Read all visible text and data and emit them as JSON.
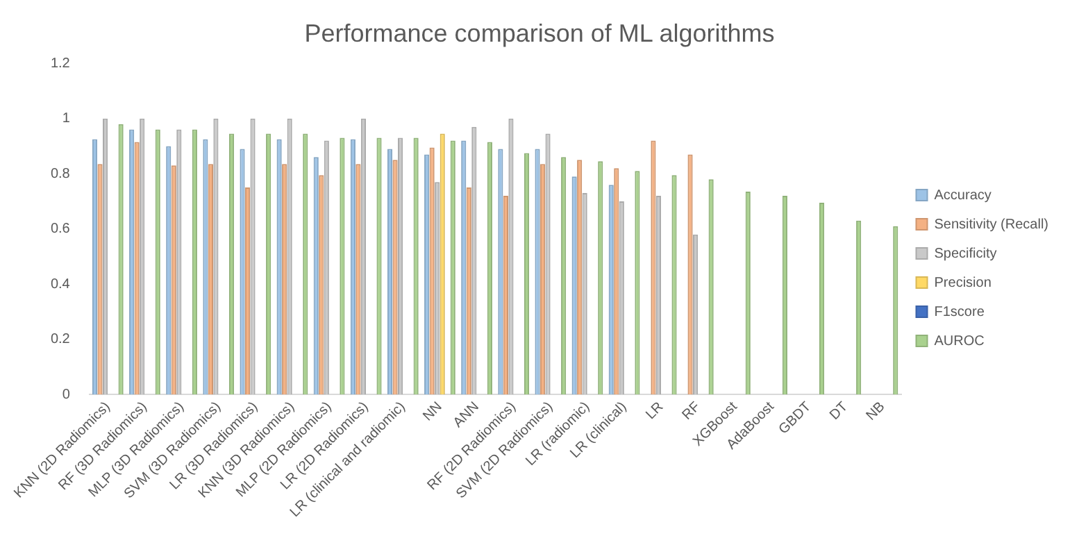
{
  "chart_data": {
    "type": "bar",
    "title": "Performance comparison of ML algorithms",
    "categories": [
      "KNN (2D Radiomics)",
      "RF (3D Radiomics)",
      "MLP (3D Radiomics)",
      "SVM (3D Radiomics)",
      "LR (3D Radiomics)",
      "KNN (3D Radiomics)",
      "MLP (2D Radiomics)",
      "LR (2D Radiomics)",
      "LR (clinical and radiomic)",
      "NN",
      "ANN",
      "RF (2D Radiomics)",
      "SVM (2D Radiomics)",
      "LR (radiomic)",
      "LR (clinical)",
      "LR",
      "RF",
      "XGBoost",
      "AdaBoost",
      "GBDT",
      "DT",
      "NB"
    ],
    "series": [
      {
        "name": "Accuracy",
        "color": "#9dc3e6",
        "values": [
          0.925,
          0.96,
          0.9,
          0.925,
          0.89,
          0.925,
          0.86,
          0.925,
          0.89,
          0.87,
          0.92,
          0.89,
          0.89,
          0.79,
          0.76,
          null,
          null,
          null,
          null,
          null,
          null,
          null
        ]
      },
      {
        "name": "Sensitivity (Recall)",
        "color": "#f4b183",
        "values": [
          0.835,
          0.915,
          0.83,
          0.835,
          0.75,
          0.835,
          0.795,
          0.835,
          0.85,
          0.895,
          0.75,
          0.72,
          0.835,
          0.85,
          0.82,
          0.92,
          0.87,
          null,
          null,
          null,
          null,
          null
        ]
      },
      {
        "name": "Specificity",
        "color": "#c9c9c9",
        "values": [
          1.0,
          1.0,
          0.96,
          1.0,
          1.0,
          1.0,
          0.92,
          1.0,
          0.93,
          0.77,
          0.97,
          1.0,
          0.945,
          0.73,
          0.7,
          0.72,
          0.58,
          null,
          null,
          null,
          null,
          null
        ]
      },
      {
        "name": "Precision",
        "color": "#ffd966",
        "values": [
          null,
          null,
          null,
          null,
          null,
          null,
          null,
          null,
          null,
          0.945,
          null,
          null,
          null,
          null,
          null,
          null,
          null,
          null,
          null,
          null,
          null,
          null
        ]
      },
      {
        "name": "F1score",
        "color": "#4472c4",
        "values": [
          null,
          null,
          null,
          null,
          null,
          null,
          null,
          null,
          null,
          null,
          null,
          null,
          null,
          null,
          null,
          null,
          null,
          null,
          null,
          null,
          null,
          null
        ]
      },
      {
        "name": "AUROC",
        "color": "#a9d18e",
        "values": [
          0.98,
          0.96,
          0.96,
          0.945,
          0.945,
          0.945,
          0.93,
          0.93,
          0.93,
          0.92,
          0.915,
          0.875,
          0.86,
          0.845,
          0.81,
          0.795,
          0.78,
          0.735,
          0.72,
          0.695,
          0.63,
          0.61
        ]
      }
    ],
    "ylim": [
      0,
      1.2
    ],
    "yticks": [
      0,
      0.2,
      0.4,
      0.6,
      0.8,
      1,
      1.2
    ],
    "legend": "right",
    "grid": false
  }
}
